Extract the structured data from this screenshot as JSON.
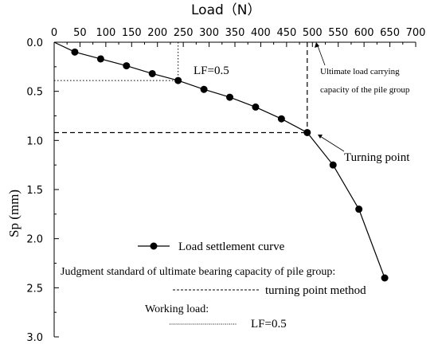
{
  "chart_data": {
    "type": "line",
    "xlabel": "Load（N）",
    "ylabel": "Sp (mm)",
    "x_ticks": [
      "0",
      "50",
      "100",
      "150",
      "200",
      "250",
      "300",
      "350",
      "400",
      "450",
      "500",
      "550",
      "600",
      "650",
      "700"
    ],
    "y_ticks": [
      "0.0",
      "0.5",
      "1.0",
      "1.5",
      "2.0",
      "2.5",
      "3.0"
    ],
    "xlim": [
      0,
      700
    ],
    "ylim": [
      0,
      3.0
    ],
    "y_inverted": true,
    "x_axis_position": "top",
    "series": [
      {
        "name": "Load settlement curve",
        "x": [
          0,
          40,
          90,
          140,
          190,
          240,
          290,
          340,
          390,
          440,
          490,
          540,
          590,
          640
        ],
        "y": [
          0.0,
          0.1,
          0.17,
          0.24,
          0.32,
          0.39,
          0.48,
          0.56,
          0.66,
          0.78,
          0.92,
          1.25,
          1.7,
          2.4
        ]
      }
    ],
    "reference_lines": {
      "working_load": {
        "x": 240,
        "y": 0.39,
        "style": "dotted"
      },
      "turning_point": {
        "x": 490,
        "y": 0.92,
        "style": "dashed"
      }
    },
    "annotations": {
      "lf_label": "LF=0.5",
      "ultimate_line1": "Ultimate load carrying",
      "ultimate_line2": "capacity of the pile group",
      "turning_point": "Turning point"
    },
    "legend": {
      "curve_label": "Load settlement curve",
      "judgment_title": "Judgment standard of ultimate bearing capacity of pile group:",
      "turning_method": "turning point method",
      "working_title": "Working load:",
      "working_value": "LF=0.5"
    }
  }
}
